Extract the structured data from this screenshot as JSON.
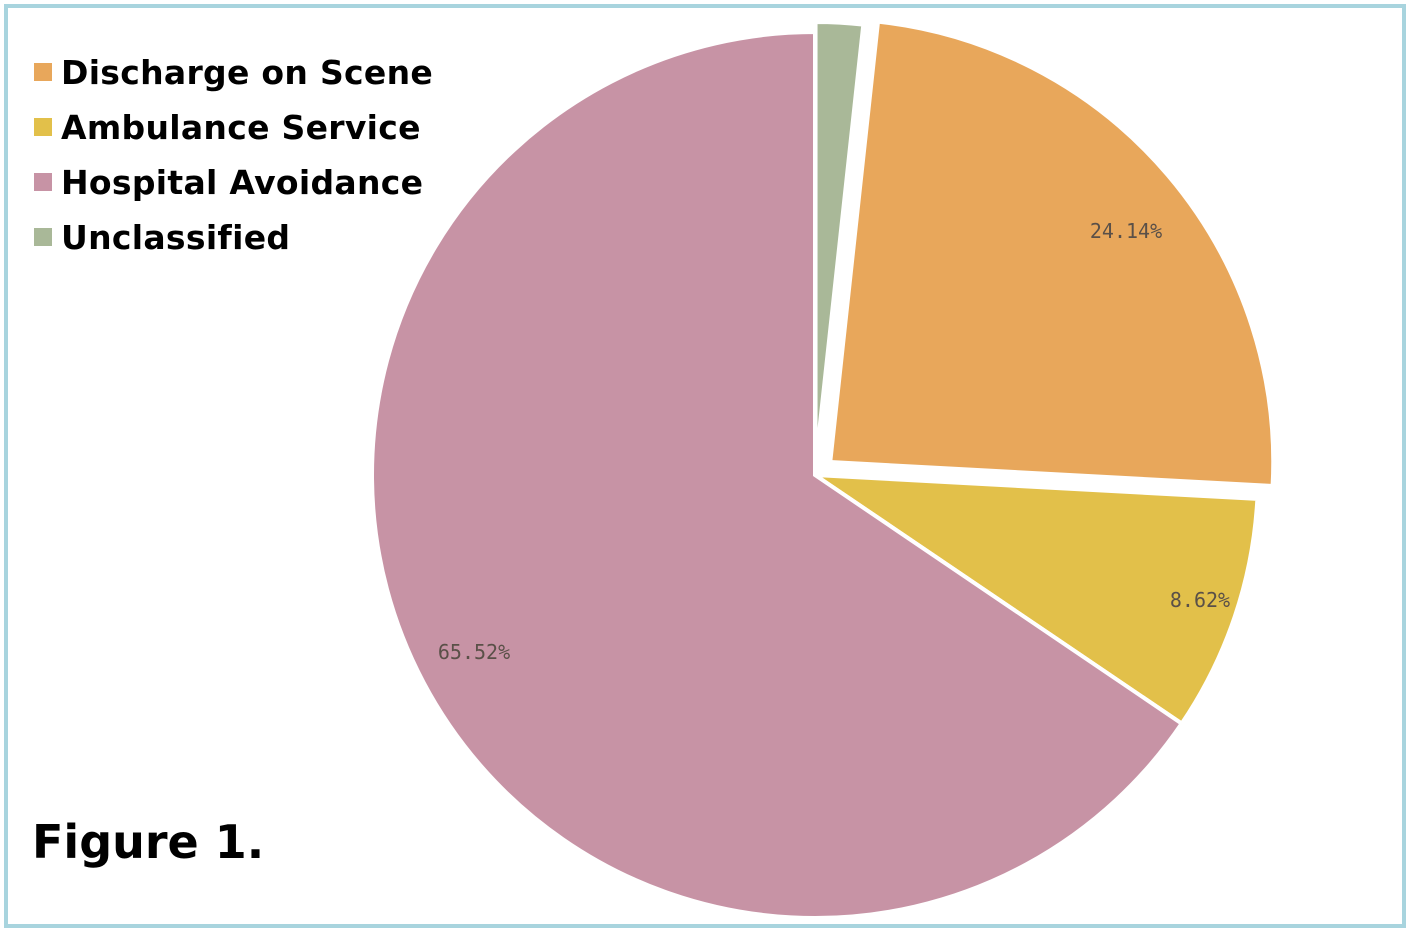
{
  "chart_data": {
    "type": "pie",
    "title": "",
    "caption": "Figure 1.",
    "legend_position": "top-left",
    "categories": [
      "Discharge on Scene",
      "Ambulance Service",
      "Hospital Avoidance",
      "Unclassified"
    ],
    "values": [
      24.14,
      8.62,
      65.52,
      1.72
    ],
    "value_labels": [
      "24.14%",
      "8.62%",
      "65.52%",
      ""
    ],
    "colors": [
      "#e8a75b",
      "#e2c04a",
      "#c793a5",
      "#a9b898"
    ],
    "exploded": [
      "Discharge on Scene",
      "Unclassified"
    ],
    "start_angle_deg": 0,
    "direction": "clockwise",
    "order_clockwise_from_top": [
      "Unclassified",
      "Discharge on Scene",
      "Ambulance Service",
      "Hospital Avoidance"
    ]
  },
  "legend": {
    "items": [
      {
        "label": "Discharge on Scene",
        "color": "#e8a75b"
      },
      {
        "label": "Ambulance Service",
        "color": "#e2c04a"
      },
      {
        "label": "Hospital Avoidance",
        "color": "#c793a5"
      },
      {
        "label": "Unclassified",
        "color": "#a9b898"
      }
    ]
  },
  "caption": "Figure 1.",
  "frame": {
    "border_color": "#a8d4de"
  }
}
